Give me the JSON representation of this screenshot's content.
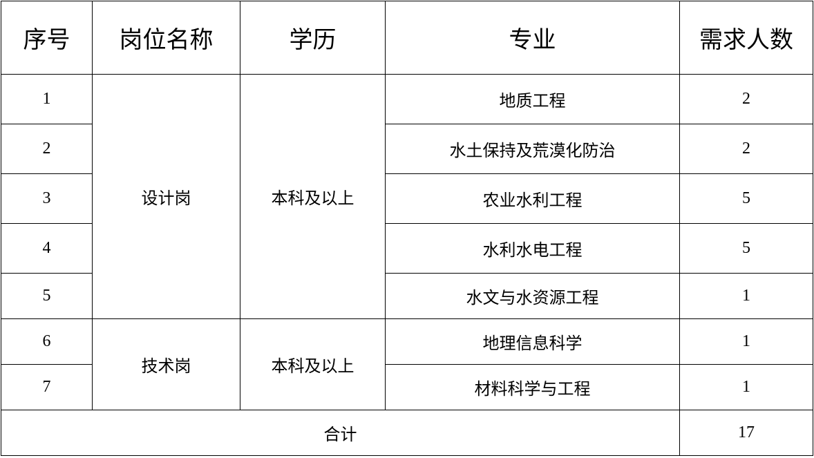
{
  "headers": [
    "序号",
    "岗位名称",
    "学历",
    "专业",
    "需求人数"
  ],
  "groups": [
    {
      "position": "设计岗",
      "education": "本科及以上"
    },
    {
      "position": "技术岗",
      "education": "本科及以上"
    }
  ],
  "rows": [
    {
      "no": "1",
      "major": "地质工程",
      "count": "2"
    },
    {
      "no": "2",
      "major": "水土保持及荒漠化防治",
      "count": "2"
    },
    {
      "no": "3",
      "major": "农业水利工程",
      "count": "5"
    },
    {
      "no": "4",
      "major": "水利水电工程",
      "count": "5"
    },
    {
      "no": "5",
      "major": "水文与水资源工程",
      "count": "1"
    },
    {
      "no": "6",
      "major": "地理信息科学",
      "count": "1"
    },
    {
      "no": "7",
      "major": "材料科学与工程",
      "count": "1"
    }
  ],
  "total": {
    "label": "合计",
    "count": "17"
  }
}
